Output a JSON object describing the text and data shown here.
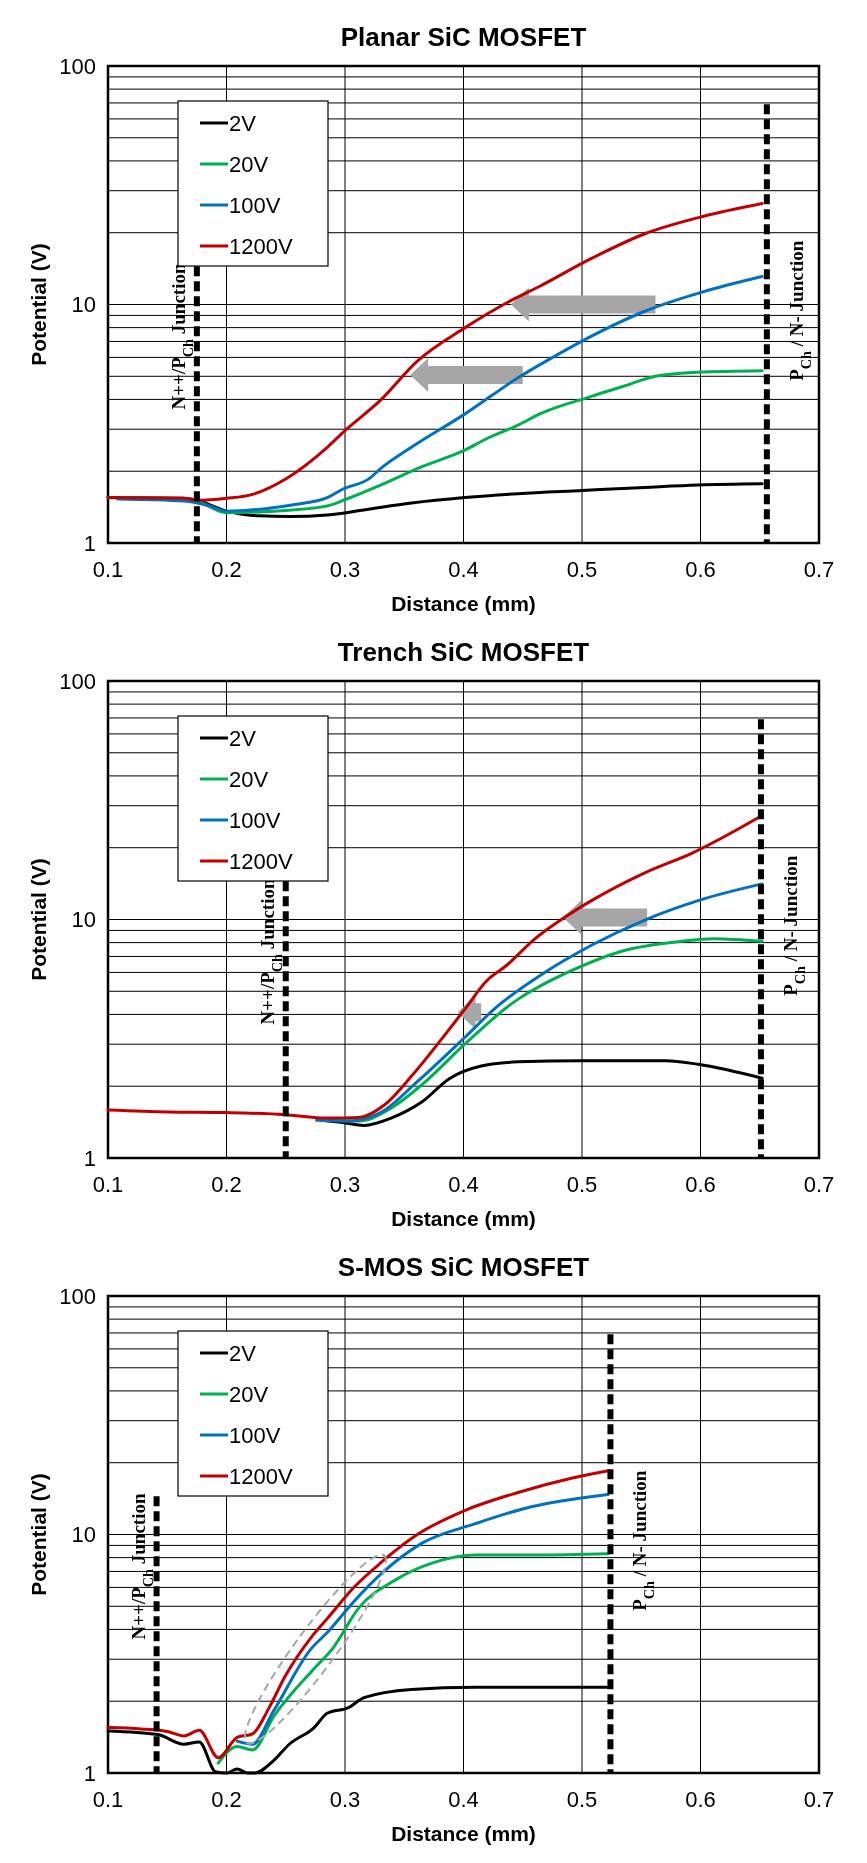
{
  "chart_data": [
    {
      "type": "line",
      "title": "Planar SiC MOSFET",
      "xlabel": "Distance (mm)",
      "ylabel": "Potential (V)",
      "log": "y",
      "grid": true,
      "legend": "top left",
      "line_style": "solid",
      "marker": "none",
      "xlim": [
        0.1,
        0.7
      ],
      "xticks": [
        0.1,
        0.2,
        0.3,
        0.4,
        0.5,
        0.6,
        0.7
      ],
      "ylim": [
        1,
        100
      ],
      "yticks": [
        1,
        {
          "value": 2,
          "label": null
        },
        {
          "value": 3,
          "label": null
        },
        {
          "value": 4,
          "label": null
        },
        {
          "value": 5,
          "label": null
        },
        {
          "value": 6,
          "label": null
        },
        {
          "value": 7,
          "label": null
        },
        {
          "value": 8,
          "label": null
        },
        {
          "value": 9,
          "label": null
        },
        10,
        {
          "value": 20,
          "label": null
        },
        {
          "value": 30,
          "label": null
        },
        {
          "value": 40,
          "label": null
        },
        {
          "value": 50,
          "label": null
        },
        {
          "value": 60,
          "label": null
        },
        {
          "value": 70,
          "label": null
        },
        {
          "value": 80,
          "label": null
        },
        {
          "value": 90,
          "label": null
        },
        100
      ],
      "ref_lines": [
        {
          "axis": "x",
          "value": 0.175,
          "label": "N++/P$_{Ch}$ Junction",
          "color": "#000000",
          "line_style": "dashed"
        },
        {
          "axis": "x",
          "value": 0.656,
          "label": "P$_{Ch}$ / N- Junction",
          "color": "#000000",
          "line_style": "dashed"
        }
      ],
      "series": [
        {
          "name": "2V",
          "color": "#000000",
          "x": [
            0.1,
            0.164,
            0.175,
            0.2,
            0.227,
            0.253,
            0.285,
            0.321,
            0.356,
            0.401,
            0.446,
            0.5,
            0.553,
            0.598,
            0.652
          ],
          "values": [
            1.55,
            1.54,
            1.51,
            1.36,
            1.3,
            1.29,
            1.31,
            1.39,
            1.47,
            1.55,
            1.61,
            1.66,
            1.71,
            1.75,
            1.77
          ]
        },
        {
          "name": "20V",
          "color": "#00b050",
          "x": [
            0.1,
            0.164,
            0.175,
            0.2,
            0.24,
            0.285,
            0.303,
            0.33,
            0.365,
            0.401,
            0.419,
            0.446,
            0.464,
            0.508,
            0.535,
            0.562,
            0.598,
            0.652
          ],
          "values": [
            1.55,
            1.53,
            1.5,
            1.34,
            1.36,
            1.43,
            1.54,
            1.75,
            2.09,
            2.45,
            2.73,
            3.12,
            3.47,
            4.12,
            4.54,
            5.0,
            5.2,
            5.28
          ]
        },
        {
          "name": "100V",
          "color": "#0070c0",
          "x": [
            0.108,
            0.164,
            0.186,
            0.2,
            0.231,
            0.258,
            0.285,
            0.298,
            0.321,
            0.33,
            0.356,
            0.401,
            0.446,
            0.482,
            0.508,
            0.553,
            0.602,
            0.652
          ],
          "values": [
            1.53,
            1.5,
            1.43,
            1.36,
            1.39,
            1.45,
            1.55,
            1.68,
            1.87,
            2.05,
            2.52,
            3.47,
            4.93,
            6.27,
            7.37,
            9.37,
            11.3,
            13.1
          ]
        },
        {
          "name": "1200V",
          "color": "#c00000",
          "x": [
            0.1,
            0.164,
            0.175,
            0.2,
            0.222,
            0.251,
            0.285,
            0.3,
            0.33,
            0.361,
            0.401,
            0.437,
            0.464,
            0.508,
            0.553,
            0.602,
            0.652
          ],
          "values": [
            1.55,
            1.54,
            1.51,
            1.54,
            1.6,
            1.87,
            2.52,
            2.96,
            3.97,
            5.79,
            7.98,
            10.2,
            11.9,
            15.6,
            19.8,
            23.4,
            26.5
          ]
        }
      ]
    },
    {
      "type": "line",
      "title": "Trench SiC MOSFET",
      "xlabel": "Distance (mm)",
      "ylabel": "Potential (V)",
      "log": "y",
      "grid": true,
      "legend": "top left",
      "line_style": "solid",
      "marker": "none",
      "xlim": [
        0.1,
        0.7
      ],
      "xticks": [
        0.1,
        0.2,
        0.3,
        0.4,
        0.5,
        0.6,
        0.7
      ],
      "ylim": [
        1,
        100
      ],
      "yticks": [
        1,
        {
          "value": 2,
          "label": null
        },
        {
          "value": 3,
          "label": null
        },
        {
          "value": 4,
          "label": null
        },
        {
          "value": 5,
          "label": null
        },
        {
          "value": 6,
          "label": null
        },
        {
          "value": 7,
          "label": null
        },
        {
          "value": 8,
          "label": null
        },
        {
          "value": 9,
          "label": null
        },
        10,
        {
          "value": 20,
          "label": null
        },
        {
          "value": 30,
          "label": null
        },
        {
          "value": 40,
          "label": null
        },
        {
          "value": 50,
          "label": null
        },
        {
          "value": 60,
          "label": null
        },
        {
          "value": 70,
          "label": null
        },
        {
          "value": 80,
          "label": null
        },
        {
          "value": 90,
          "label": null
        },
        100
      ],
      "ref_lines": [
        {
          "axis": "x",
          "value": 0.25,
          "label": "N++/P$_{Ch}$ Junction",
          "color": "#000000",
          "line_style": "dashed"
        },
        {
          "axis": "x",
          "value": 0.651,
          "label": "P$_{Ch}$ / N- Junction",
          "color": "#000000",
          "line_style": "dashed"
        }
      ],
      "series": [
        {
          "name": "2V",
          "color": "#000000",
          "x": [
            0.28,
            0.298,
            0.316,
            0.339,
            0.365,
            0.388,
            0.415,
            0.446,
            0.5,
            0.571,
            0.598,
            0.652
          ],
          "values": [
            1.44,
            1.41,
            1.37,
            1.47,
            1.72,
            2.15,
            2.43,
            2.53,
            2.56,
            2.56,
            2.47,
            2.16
          ]
        },
        {
          "name": "20V",
          "color": "#00b050",
          "x": [
            0.28,
            0.312,
            0.339,
            0.365,
            0.401,
            0.441,
            0.491,
            0.535,
            0.584,
            0.611,
            0.652
          ],
          "values": [
            1.44,
            1.43,
            1.62,
            2.03,
            3.0,
            4.45,
            6.1,
            7.4,
            8.1,
            8.3,
            8.1
          ]
        },
        {
          "name": "100V",
          "color": "#0070c0",
          "x": [
            0.276,
            0.303,
            0.33,
            0.361,
            0.401,
            0.428,
            0.464,
            0.508,
            0.553,
            0.598,
            0.652
          ],
          "values": [
            1.44,
            1.43,
            1.55,
            2.09,
            3.2,
            4.3,
            5.8,
            7.8,
            9.95,
            12.0,
            14.1
          ]
        },
        {
          "name": "1200V",
          "color": "#c00000",
          "x": [
            0.1,
            0.151,
            0.2,
            0.249,
            0.285,
            0.312,
            0.334,
            0.356,
            0.379,
            0.401,
            0.419,
            0.437,
            0.459,
            0.482,
            0.508,
            0.553,
            0.593,
            0.652
          ],
          "values": [
            1.59,
            1.56,
            1.55,
            1.52,
            1.47,
            1.48,
            1.68,
            2.2,
            3.04,
            4.2,
            5.5,
            6.46,
            8.2,
            9.95,
            12.0,
            15.7,
            19.0,
            27.3
          ]
        }
      ]
    },
    {
      "type": "line",
      "title": "S-MOS SiC MOSFET",
      "xlabel": "Distance (mm)",
      "ylabel": "Potential (V)",
      "log": "y",
      "grid": true,
      "legend": "top left",
      "line_style": "solid",
      "marker": "none",
      "xlim": [
        0.1,
        0.7
      ],
      "xticks": [
        0.1,
        0.2,
        0.3,
        0.4,
        0.5,
        0.6,
        0.7
      ],
      "ylim": [
        1,
        100
      ],
      "yticks": [
        1,
        {
          "value": 2,
          "label": null
        },
        {
          "value": 3,
          "label": null
        },
        {
          "value": 4,
          "label": null
        },
        {
          "value": 5,
          "label": null
        },
        {
          "value": 6,
          "label": null
        },
        {
          "value": 7,
          "label": null
        },
        {
          "value": 8,
          "label": null
        },
        {
          "value": 9,
          "label": null
        },
        10,
        {
          "value": 20,
          "label": null
        },
        {
          "value": 30,
          "label": null
        },
        {
          "value": 40,
          "label": null
        },
        {
          "value": 50,
          "label": null
        },
        {
          "value": 60,
          "label": null
        },
        {
          "value": 70,
          "label": null
        },
        {
          "value": 80,
          "label": null
        },
        {
          "value": 90,
          "label": null
        },
        100
      ],
      "ref_lines": [
        {
          "axis": "x",
          "value": 0.141,
          "label": "N++/P$_{Ch}$ Junction",
          "color": "#000000",
          "line_style": "dashed"
        },
        {
          "axis": "x",
          "value": 0.524,
          "label": "P$_{Ch}$ / N- Junction",
          "color": "#000000",
          "line_style": "dashed"
        }
      ],
      "series": [
        {
          "name": "2V",
          "color": "#000000",
          "x": [
            0.1,
            0.142,
            0.164,
            0.177,
            0.191,
            0.2,
            0.209,
            0.218,
            0.224,
            0.24,
            0.253,
            0.274,
            0.285,
            0.303,
            0.316,
            0.356,
            0.41,
            0.522
          ],
          "values": [
            1.5,
            1.45,
            1.32,
            1.35,
            1.01,
            1.0,
            1.04,
            1.0,
            1.0,
            1.13,
            1.32,
            1.55,
            1.78,
            1.88,
            2.07,
            2.24,
            2.29,
            2.29
          ]
        },
        {
          "name": "20V",
          "color": "#00b050",
          "x": [
            0.193,
            0.209,
            0.222,
            0.24,
            0.276,
            0.289,
            0.312,
            0.343,
            0.374,
            0.41,
            0.463,
            0.522
          ],
          "values": [
            1.1,
            1.29,
            1.25,
            1.73,
            2.81,
            3.3,
            4.95,
            6.47,
            7.6,
            8.2,
            8.2,
            8.3
          ]
        },
        {
          "name": "100V",
          "color": "#0070c0",
          "x": [
            0.209,
            0.222,
            0.24,
            0.271,
            0.285,
            0.307,
            0.33,
            0.365,
            0.41,
            0.45,
            0.522
          ],
          "values": [
            1.36,
            1.32,
            1.83,
            3.3,
            3.88,
            5.2,
            6.8,
            9.2,
            11.1,
            12.8,
            14.7
          ]
        },
        {
          "name": "1200V",
          "color": "#c00000",
          "x": [
            0.1,
            0.128,
            0.151,
            0.164,
            0.177,
            0.193,
            0.209,
            0.222,
            0.236,
            0.249,
            0.271,
            0.285,
            0.307,
            0.33,
            0.361,
            0.401,
            0.446,
            0.491,
            0.522
          ],
          "values": [
            1.55,
            1.53,
            1.49,
            1.43,
            1.51,
            1.16,
            1.41,
            1.46,
            1.88,
            2.52,
            3.68,
            4.44,
            5.97,
            7.6,
            10.0,
            12.6,
            15.0,
            17.2,
            18.5
          ]
        }
      ]
    }
  ]
}
